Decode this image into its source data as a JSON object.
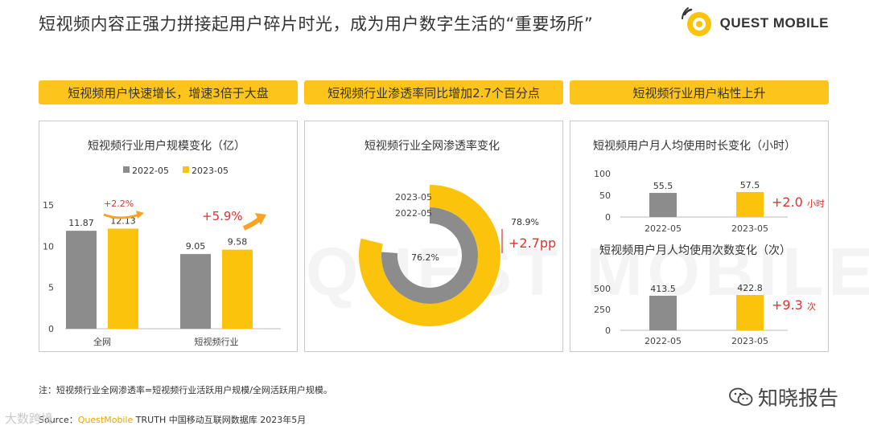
{
  "header": {
    "title": "短视频内容正强力拼接起用户碎片时光，成为用户数字生活的“重要场所”",
    "logo_text": "QUEST MOBILE"
  },
  "banners": [
    "短视频用户快速增长，增速3倍于大盘",
    "短视频行业渗透率同比增加2.7个百分点",
    "短视频行业用户粘性上升"
  ],
  "colors": {
    "gray": "#8c8c8c",
    "yellow": "#fcc30d",
    "red": "#e0312b",
    "orange": "#f7a326"
  },
  "chart_data": [
    {
      "type": "bar",
      "title": "短视频行业用户规模变化（亿）",
      "categories": [
        "全网",
        "短视频行业"
      ],
      "series": [
        {
          "name": "2022-05",
          "values": [
            11.87,
            9.05
          ]
        },
        {
          "name": "2023-05",
          "values": [
            12.13,
            9.58
          ]
        }
      ],
      "ylim": [
        0,
        15
      ],
      "yticks": [
        0,
        5,
        10,
        15
      ],
      "annotations": [
        "+2.2%",
        "+5.9%"
      ],
      "legend": "top"
    },
    {
      "type": "pie",
      "title": "短视频行业全网渗透率变化",
      "series": [
        {
          "name": "2023-05",
          "value": 78.9,
          "label": "78.9%"
        },
        {
          "name": "2022-05",
          "value": 76.2,
          "label": "76.2%"
        }
      ],
      "annotation": "+2.7pp"
    },
    {
      "type": "bar",
      "title": "短视频用户月人均使用时长变化（小时）",
      "categories": [
        "2022-05",
        "2023-05"
      ],
      "values": [
        55.5,
        57.5
      ],
      "ylim": [
        0,
        100
      ],
      "yticks": [
        0,
        50,
        100
      ],
      "annotation": {
        "value": "+2.0",
        "unit": "小时"
      }
    },
    {
      "type": "bar",
      "title": "短视频用户月人均使用次数变化（次）",
      "categories": [
        "2022-05",
        "2023-05"
      ],
      "values": [
        413.5,
        422.8
      ],
      "ylim": [
        0,
        500
      ],
      "yticks": [
        0,
        250,
        500
      ],
      "annotation": {
        "value": "+9.3",
        "unit": "次"
      }
    }
  ],
  "footer": {
    "note": "注：短视频行业全网渗透率=短视频行业活跃用户规模/全网活跃用户规模。",
    "source_prefix": "Source：",
    "source_brand": "QuestMobile",
    "source_rest": " TRUTH 中国移动互联网数据库 2023年5月",
    "watermark_right": "知晓报告",
    "watermark_left": "大数跨境",
    "watermark_big": "QUEST MOBILE"
  }
}
